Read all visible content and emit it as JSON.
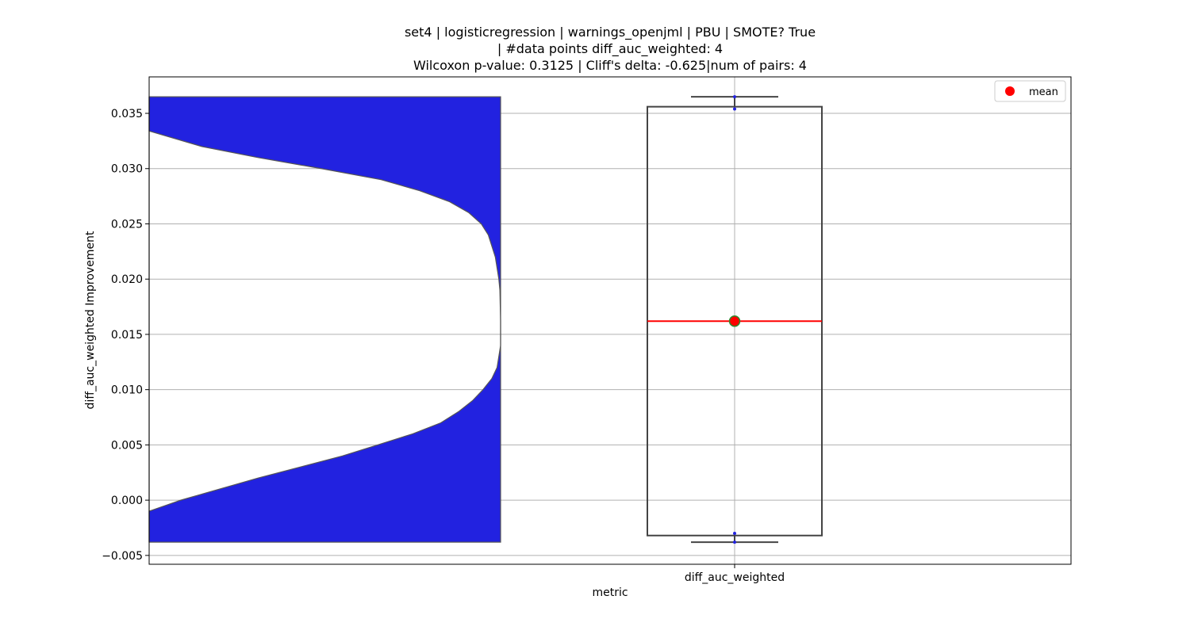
{
  "chart_data": {
    "type": "violin+box",
    "title": [
      "set4 | logisticregression | warnings_openjml | PBU | SMOTE? True",
      "| #data points diff_auc_weighted: 4",
      "Wilcoxon p-value: 0.3125 | Cliff's delta: -0.625|num of pairs: 4"
    ],
    "xlabel": "metric",
    "ylabel": "diff_auc_weighted Improvement",
    "categories": [
      "diff_auc_weighted"
    ],
    "ylim": [
      -0.0058,
      0.0383
    ],
    "yticks": [
      -0.005,
      0.0,
      0.005,
      0.01,
      0.015,
      0.02,
      0.025,
      0.03,
      0.035
    ],
    "ytick_labels": [
      "−0.005",
      "0.000",
      "0.005",
      "0.010",
      "0.015",
      "0.020",
      "0.025",
      "0.030",
      "0.035"
    ],
    "grid": true,
    "legend": {
      "placement": "top-right",
      "entries": [
        {
          "label": "mean",
          "marker": "circle",
          "color": "#ff0000"
        }
      ]
    },
    "box": {
      "category": "diff_auc_weighted",
      "whisker_low": -0.0038,
      "q1": -0.0032,
      "median": 0.0162,
      "q3": 0.0356,
      "whisker_high": 0.0365,
      "mean": 0.0162,
      "points": [
        -0.0038,
        -0.003,
        0.0354,
        0.0365
      ]
    },
    "violin": {
      "y_min": -0.0038,
      "y_max": 0.0365,
      "color": "#2222e0",
      "density_profile": [
        [
          -0.0038,
          0.0
        ],
        [
          -0.001,
          0.0
        ],
        [
          0.0,
          0.09
        ],
        [
          0.002,
          0.31
        ],
        [
          0.004,
          0.55
        ],
        [
          0.005,
          0.65
        ],
        [
          0.006,
          0.75
        ],
        [
          0.007,
          0.83
        ],
        [
          0.008,
          0.88
        ],
        [
          0.009,
          0.92
        ],
        [
          0.01,
          0.95
        ],
        [
          0.011,
          0.975
        ],
        [
          0.012,
          0.99
        ],
        [
          0.014,
          1.0
        ],
        [
          0.0162,
          1.0
        ],
        [
          0.019,
          0.998
        ],
        [
          0.02,
          0.995
        ],
        [
          0.022,
          0.985
        ],
        [
          0.024,
          0.965
        ],
        [
          0.025,
          0.945
        ],
        [
          0.026,
          0.91
        ],
        [
          0.027,
          0.855
        ],
        [
          0.028,
          0.77
        ],
        [
          0.029,
          0.66
        ],
        [
          0.03,
          0.49
        ],
        [
          0.031,
          0.31
        ],
        [
          0.032,
          0.15
        ],
        [
          0.0334,
          0.0
        ],
        [
          0.0365,
          0.0
        ]
      ]
    },
    "colors": {
      "violin_fill": "#2222e0",
      "box_edge": "#444444",
      "median_line": "#ff0000",
      "mean_marker": "#ff0000",
      "mean_marker_edge": "#2e8b2e",
      "points": "#2222e0",
      "grid": "#b0b0b0"
    }
  }
}
